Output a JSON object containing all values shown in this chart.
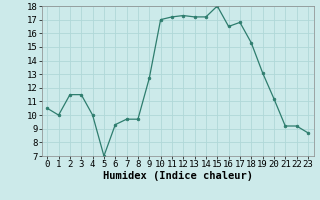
{
  "x": [
    0,
    1,
    2,
    3,
    4,
    5,
    6,
    7,
    8,
    9,
    10,
    11,
    12,
    13,
    14,
    15,
    16,
    17,
    18,
    19,
    20,
    21,
    22,
    23
  ],
  "y": [
    10.5,
    10.0,
    11.5,
    11.5,
    10.0,
    7.0,
    9.3,
    9.7,
    9.7,
    12.7,
    17.0,
    17.2,
    17.3,
    17.2,
    17.2,
    18.0,
    16.5,
    16.8,
    15.3,
    13.1,
    11.2,
    9.2,
    9.2,
    8.7
  ],
  "line_color": "#2e7d6e",
  "marker": "o",
  "markersize": 2.0,
  "linewidth": 0.9,
  "xlabel": "Humidex (Indice chaleur)",
  "ylim": [
    7,
    18
  ],
  "xlim": [
    -0.5,
    23.5
  ],
  "yticks": [
    7,
    8,
    9,
    10,
    11,
    12,
    13,
    14,
    15,
    16,
    17,
    18
  ],
  "xticks": [
    0,
    1,
    2,
    3,
    4,
    5,
    6,
    7,
    8,
    9,
    10,
    11,
    12,
    13,
    14,
    15,
    16,
    17,
    18,
    19,
    20,
    21,
    22,
    23
  ],
  "bg_color": "#cceaea",
  "grid_color": "#b0d8d8",
  "tick_fontsize": 6.5,
  "xlabel_fontsize": 7.5
}
